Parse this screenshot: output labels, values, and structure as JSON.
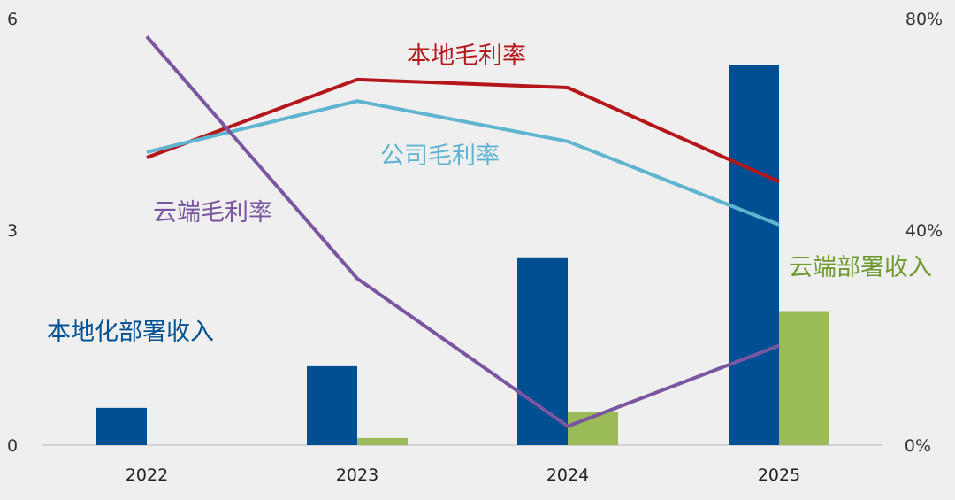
{
  "chart_data": {
    "type": "bar",
    "categories": [
      "2022",
      "2023",
      "2024",
      "2025"
    ],
    "y_left": {
      "ticks": [
        "0",
        "3",
        "6"
      ],
      "lim": [
        0,
        6
      ]
    },
    "y_right": {
      "ticks": [
        "0%",
        "40%",
        "80%"
      ],
      "lim": [
        0,
        80
      ]
    },
    "bar_series": [
      {
        "name": "本地化部署收入",
        "color": "#004f92",
        "axis": "left",
        "values": [
          0.52,
          1.1,
          2.62,
          5.3
        ]
      },
      {
        "name": "云端部署收入",
        "color": "#9bbb59",
        "axis": "left",
        "values": [
          0,
          0.1,
          0.46,
          1.87
        ]
      }
    ],
    "line_series": [
      {
        "name": "本地毛利率",
        "color": "#b5161b",
        "axis": "right",
        "values": [
          53.5,
          68,
          66.5,
          49
        ]
      },
      {
        "name": "公司毛利率",
        "color": "#5fb4cf",
        "axis": "right",
        "values": [
          54.5,
          64,
          56.5,
          41
        ]
      },
      {
        "name": "云端毛利率",
        "color": "#7b56a0",
        "axis": "right",
        "values": [
          76,
          31,
          3.5,
          18.5
        ]
      }
    ],
    "grid": false
  }
}
